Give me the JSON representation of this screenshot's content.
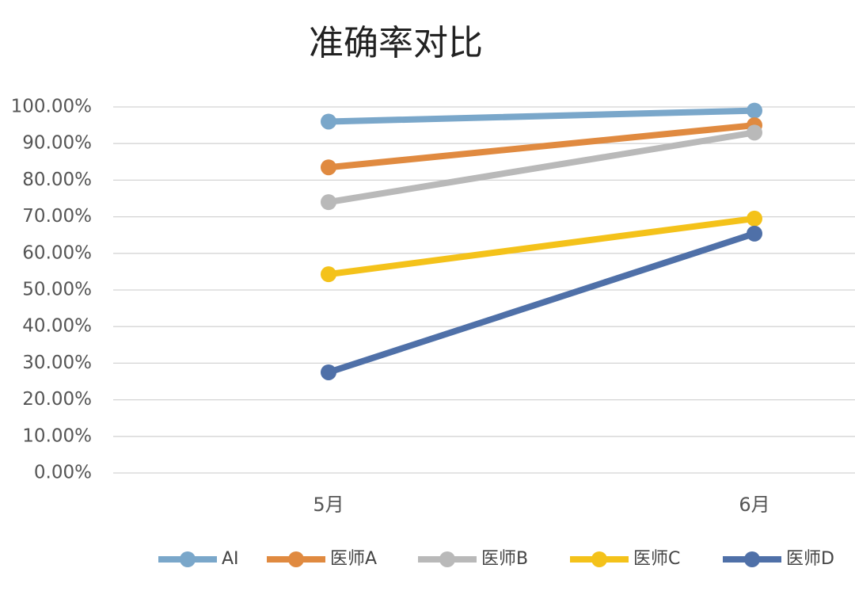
{
  "chart_data": {
    "type": "line",
    "title": "准确率对比",
    "categories": [
      "5月",
      "6月"
    ],
    "series": [
      {
        "name": "AI",
        "color": "#7aa7ca",
        "values": [
          96,
          99
        ]
      },
      {
        "name": "医师A",
        "color": "#e08a40",
        "values": [
          83.5,
          95
        ]
      },
      {
        "name": "医师B",
        "color": "#b9b9b9",
        "values": [
          74,
          93
        ]
      },
      {
        "name": "医师C",
        "color": "#f4c21a",
        "values": [
          54.3,
          69.5
        ]
      },
      {
        "name": "医师D",
        "color": "#4f70a8",
        "values": [
          27.5,
          65.4
        ]
      }
    ],
    "ylim": [
      0,
      100
    ],
    "yticks": [
      {
        "value": 0,
        "label": "0.00%"
      },
      {
        "value": 10,
        "label": "10.00%"
      },
      {
        "value": 20,
        "label": "20.00%"
      },
      {
        "value": 30,
        "label": "30.00%"
      },
      {
        "value": 40,
        "label": "40.00%"
      },
      {
        "value": 50,
        "label": "50.00%"
      },
      {
        "value": 60,
        "label": "60.00%"
      },
      {
        "value": 70,
        "label": "70.00%"
      },
      {
        "value": 80,
        "label": "80.00%"
      },
      {
        "value": 90,
        "label": "90.00%"
      },
      {
        "value": 100,
        "label": "100.00%"
      }
    ],
    "grid": true,
    "legend": "bottom"
  }
}
